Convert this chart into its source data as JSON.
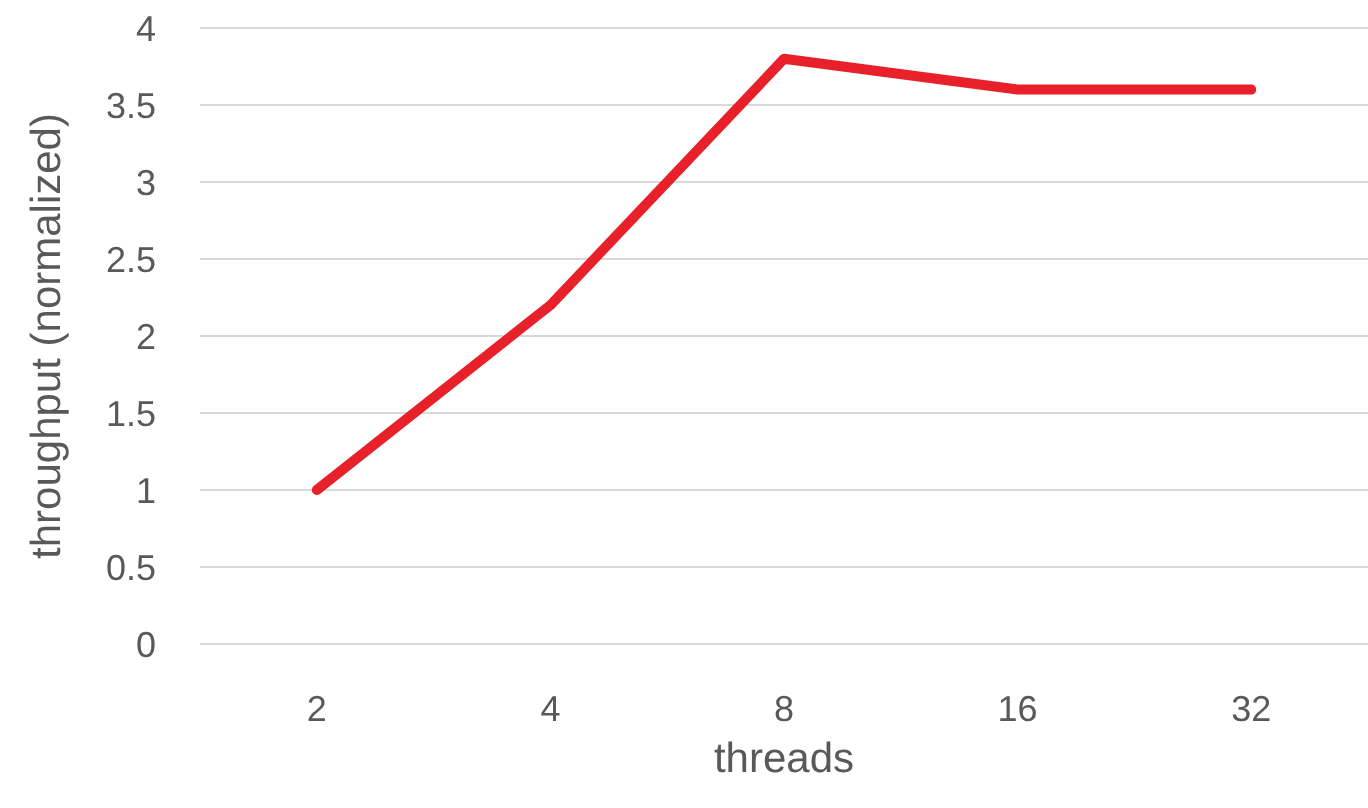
{
  "chart_data": {
    "type": "line",
    "xlabel": "threads",
    "ylabel": "throughput (normalized)",
    "categories": [
      "2",
      "4",
      "8",
      "16",
      "32"
    ],
    "series": [
      {
        "color": "#e8202a",
        "values": [
          1,
          2.2,
          3.8,
          3.6,
          3.6
        ]
      }
    ],
    "ylim": [
      0,
      4
    ],
    "yticks": [
      0,
      0.5,
      1,
      1.5,
      2,
      2.5,
      3,
      3.5,
      4
    ],
    "grid": "y",
    "marker": "none",
    "line_style": "solid"
  }
}
